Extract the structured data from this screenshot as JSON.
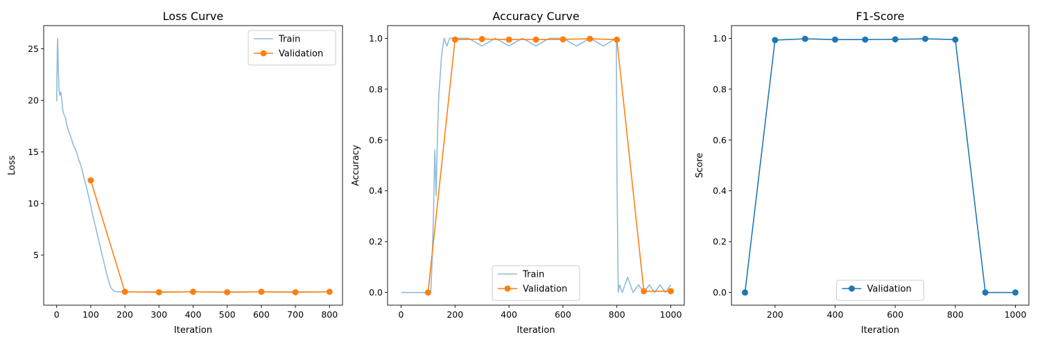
{
  "chart_data": [
    {
      "type": "line",
      "title": "Loss Curve",
      "xlabel": "Iteration",
      "ylabel": "Loss",
      "xlim": [
        -38,
        838
      ],
      "ylim": [
        0.15,
        27.25
      ],
      "xticks": [
        0,
        100,
        200,
        300,
        400,
        500,
        600,
        700,
        800
      ],
      "yticks": [
        5,
        10,
        15,
        20,
        25
      ],
      "legend_position": "upper right",
      "series": [
        {
          "name": "Train",
          "color": "#1f77b4",
          "opacity": 0.5,
          "marker": "none",
          "x": [
            0,
            2,
            3,
            5,
            7,
            9,
            12,
            15,
            18,
            22,
            26,
            30,
            35,
            40,
            45,
            50,
            55,
            60,
            65,
            70,
            75,
            80,
            85,
            90,
            95,
            100,
            105,
            110,
            115,
            120,
            125,
            130,
            135,
            140,
            145,
            150,
            155,
            160,
            165,
            170,
            175,
            180,
            190,
            200,
            220,
            250,
            300,
            350,
            400,
            450,
            500,
            550,
            600,
            650,
            700,
            750,
            800
          ],
          "y": [
            19.9,
            25.0,
            26.0,
            23.0,
            21.0,
            20.5,
            20.8,
            20.2,
            19.0,
            18.6,
            18.3,
            17.6,
            17.0,
            16.6,
            16.1,
            15.6,
            15.3,
            14.8,
            14.2,
            13.8,
            13.2,
            12.5,
            11.9,
            11.2,
            10.5,
            9.8,
            9.0,
            8.3,
            7.6,
            6.9,
            6.2,
            5.5,
            4.8,
            4.1,
            3.4,
            2.8,
            2.2,
            1.8,
            1.6,
            1.5,
            1.45,
            1.45,
            1.44,
            1.43,
            1.45,
            1.42,
            1.44,
            1.43,
            1.45,
            1.42,
            1.44,
            1.43,
            1.45,
            1.42,
            1.44,
            1.43,
            1.44
          ]
        },
        {
          "name": "Validation",
          "color": "#ff7f0e",
          "marker": "o",
          "x": [
            100,
            200,
            300,
            400,
            500,
            600,
            700,
            800
          ],
          "y": [
            12.25,
            1.45,
            1.4,
            1.45,
            1.4,
            1.45,
            1.4,
            1.45
          ]
        }
      ]
    },
    {
      "type": "line",
      "title": "Accuracy Curve",
      "xlabel": "Iteration",
      "ylabel": "Accuracy",
      "xlim": [
        -50,
        1050
      ],
      "ylim": [
        -0.05,
        1.05
      ],
      "xticks": [
        0,
        200,
        400,
        600,
        800,
        1000
      ],
      "yticks": [
        0.0,
        0.2,
        0.4,
        0.6,
        0.8,
        1.0
      ],
      "legend_position": "lower center",
      "series": [
        {
          "name": "Train",
          "color": "#1f77b4",
          "opacity": 0.5,
          "marker": "none",
          "x": [
            0,
            110,
            115,
            120,
            125,
            130,
            135,
            140,
            145,
            150,
            155,
            160,
            170,
            180,
            250,
            300,
            350,
            400,
            450,
            500,
            550,
            600,
            650,
            700,
            750,
            798,
            800,
            805,
            810,
            820,
            840,
            860,
            880,
            900,
            920,
            940,
            960,
            980,
            1000
          ],
          "y": [
            0.0,
            0.0,
            0.12,
            0.3,
            0.56,
            0.38,
            0.62,
            0.78,
            0.85,
            0.93,
            0.97,
            1.0,
            0.97,
            1.0,
            1.0,
            0.97,
            1.0,
            0.97,
            1.0,
            0.97,
            1.0,
            1.0,
            0.97,
            1.0,
            0.97,
            1.0,
            0.5,
            0.0,
            0.03,
            0.0,
            0.06,
            0.0,
            0.03,
            0.0,
            0.03,
            0.0,
            0.03,
            0.0,
            0.03
          ]
        },
        {
          "name": "Validation",
          "color": "#ff7f0e",
          "marker": "o",
          "x": [
            100,
            200,
            300,
            400,
            500,
            600,
            700,
            800,
            900,
            1000
          ],
          "y": [
            0.0,
            0.995,
            0.997,
            0.995,
            0.995,
            0.996,
            0.998,
            0.995,
            0.005,
            0.005
          ]
        }
      ]
    },
    {
      "type": "line",
      "title": "F1-Score",
      "xlabel": "Iteration",
      "ylabel": "Score",
      "xlim": [
        55,
        1045
      ],
      "ylim": [
        -0.05,
        1.05
      ],
      "xticks": [
        200,
        400,
        600,
        800,
        1000
      ],
      "yticks": [
        0.0,
        0.2,
        0.4,
        0.6,
        0.8,
        1.0
      ],
      "legend_position": "lower center",
      "series": [
        {
          "name": "Validation",
          "color": "#1f77b4",
          "marker": "o",
          "x": [
            100,
            200,
            300,
            400,
            500,
            600,
            700,
            800,
            900,
            1000
          ],
          "y": [
            0.0,
            0.993,
            0.998,
            0.995,
            0.995,
            0.996,
            0.998,
            0.995,
            0.0,
            0.0
          ]
        }
      ]
    }
  ]
}
